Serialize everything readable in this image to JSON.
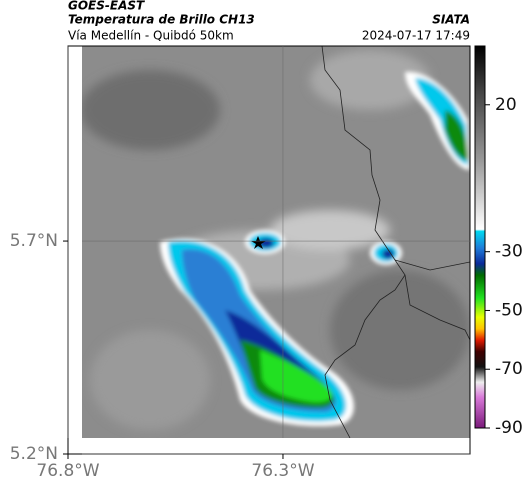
{
  "header": {
    "satellite": "GOES-EAST",
    "title": "Temperatura de Brillo CH13",
    "source": "SIATA",
    "subtitle": "Vía Medellín - Quibdó 50km",
    "timestamp": "2024-07-17 17:49"
  },
  "map": {
    "xlim": [
      -76.8,
      -75.865
    ],
    "ylim": [
      5.2,
      6.158
    ],
    "xticks": [
      {
        "value": -76.8,
        "label": "76.8°W"
      },
      {
        "value": -76.3,
        "label": "76.3°W"
      }
    ],
    "yticks": [
      {
        "value": 5.7,
        "label": "5.7°N"
      },
      {
        "value": 5.2,
        "label": "5.2°N"
      }
    ],
    "grid": true
  },
  "colorbar": {
    "lim": [
      40,
      -90
    ],
    "ticks": [
      20,
      -30,
      -50,
      -70,
      -90
    ]
  }
}
